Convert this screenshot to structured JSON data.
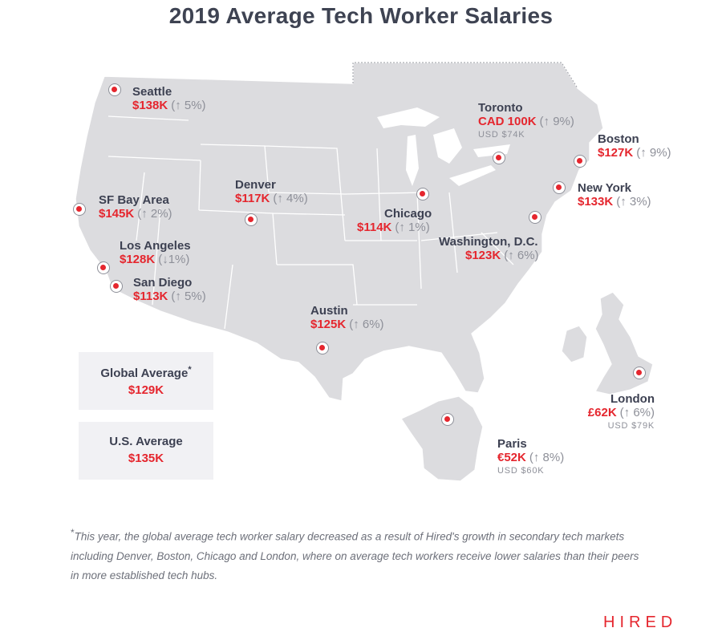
{
  "title": "2019 Average Tech Worker Salaries",
  "colors": {
    "land": "#dcdcdf",
    "accent": "#e5262e",
    "text": "#3d4152",
    "muted": "#8e9099",
    "box": "#f1f1f4"
  },
  "cities": [
    {
      "id": "seattle",
      "name": "Seattle",
      "salary": "$138K",
      "change": "(↑ 5%)"
    },
    {
      "id": "sf",
      "name": "SF Bay Area",
      "salary": "$145K",
      "change": "(↑ 2%)"
    },
    {
      "id": "la",
      "name": "Los Angeles",
      "salary": "$128K",
      "change": "(↓1%)"
    },
    {
      "id": "sd",
      "name": "San Diego",
      "salary": "$113K",
      "change": "(↑ 5%)"
    },
    {
      "id": "denver",
      "name": "Denver",
      "salary": "$117K",
      "change": "(↑ 4%)"
    },
    {
      "id": "austin",
      "name": "Austin",
      "salary": "$125K",
      "change": "(↑ 6%)"
    },
    {
      "id": "chicago",
      "name": "Chicago",
      "salary": "$114K",
      "change": "(↑ 1%)"
    },
    {
      "id": "toronto",
      "name": "Toronto",
      "salary": "CAD 100K",
      "change": "(↑ 9%)",
      "usd": "USD $74K"
    },
    {
      "id": "boston",
      "name": "Boston",
      "salary": "$127K",
      "change": "(↑ 9%)"
    },
    {
      "id": "newyork",
      "name": "New York",
      "salary": "$133K",
      "change": "(↑ 3%)"
    },
    {
      "id": "dc",
      "name": "Washington, D.C.",
      "salary": "$123K",
      "change": "(↑ 6%)"
    },
    {
      "id": "london",
      "name": "London",
      "salary": "£62K",
      "change": "(↑ 6%)",
      "usd": "USD $79K"
    },
    {
      "id": "paris",
      "name": "Paris",
      "salary": "€52K",
      "change": "(↑ 8%)",
      "usd": "USD $60K"
    }
  ],
  "averages": {
    "global": {
      "label": "Global Average",
      "asterisk": "*",
      "value": "$129K"
    },
    "us": {
      "label": "U.S. Average",
      "value": "$135K"
    }
  },
  "footnote": {
    "asterisk": "*",
    "text": "This year, the global average tech worker salary decreased as a result of Hired's growth in secondary tech markets including Denver, Boston, Chicago and London, where on average tech workers receive lower salaries than their peers in more established tech hubs."
  },
  "logo": "HIRED"
}
